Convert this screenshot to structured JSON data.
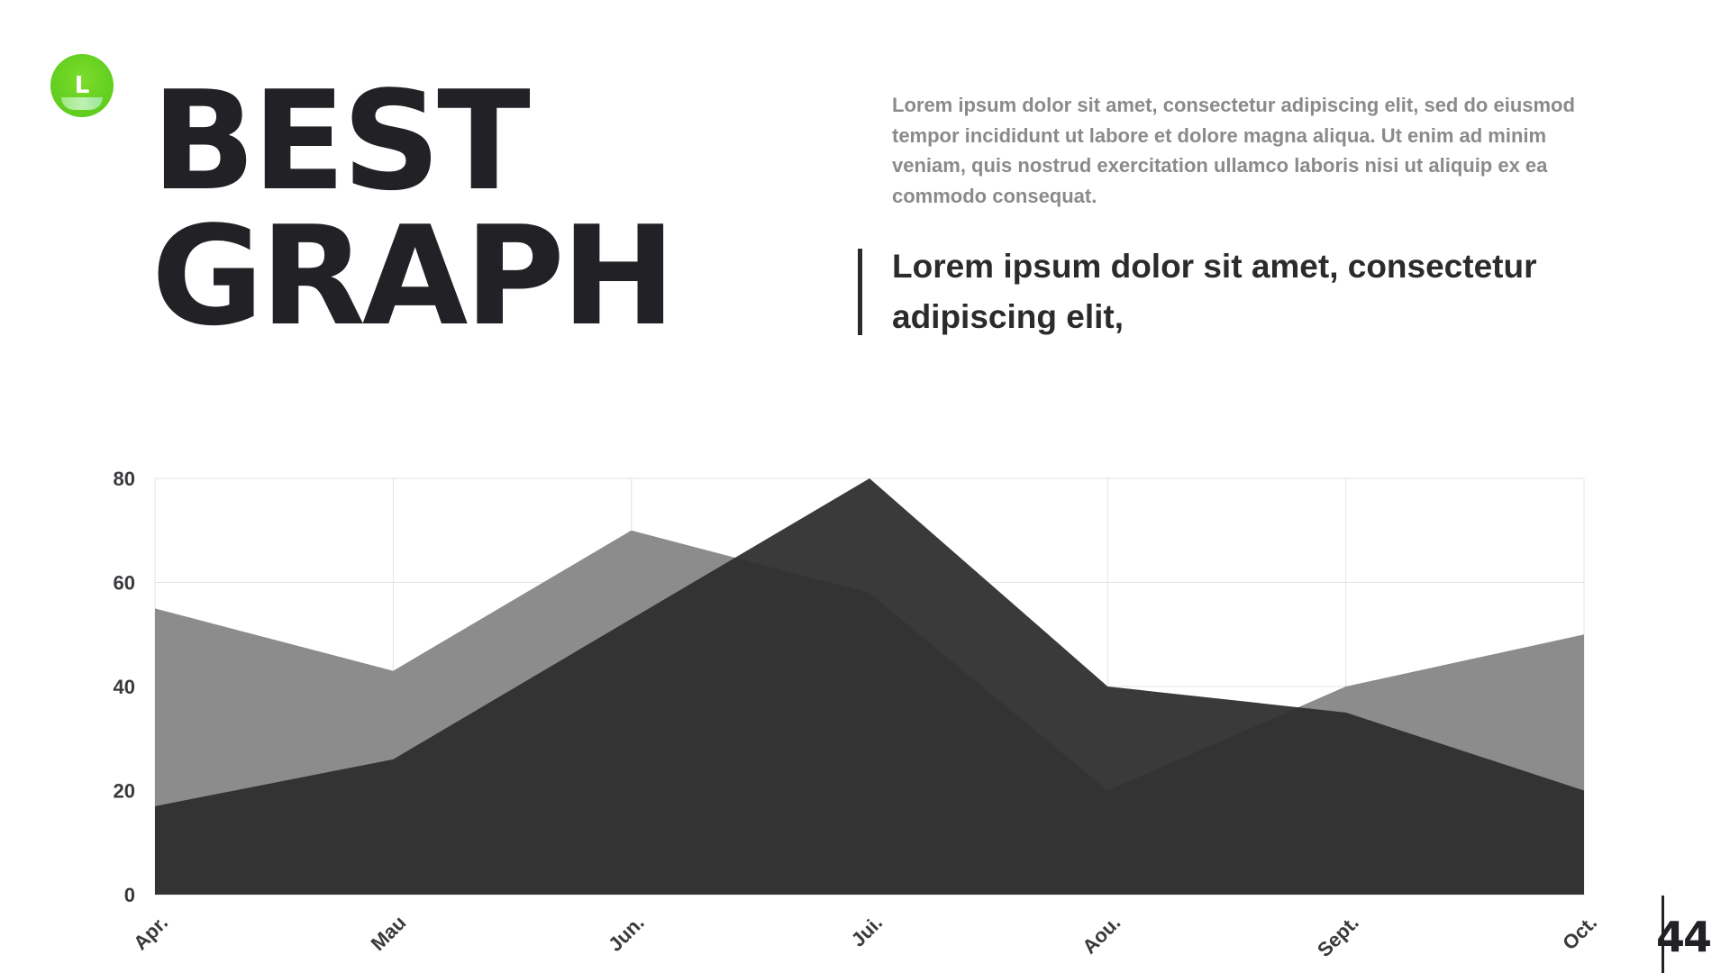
{
  "logo": {
    "letter": "L",
    "icon": "logo-circle-icon",
    "color": "#5cc81b"
  },
  "title": {
    "line1": "BEST",
    "line2": "GRAPH"
  },
  "paragraph": "Lorem ipsum dolor sit amet, consectetur adipiscing elit, sed do eiusmod tempor incididunt ut labore et dolore magna aliqua. Ut enim ad minim veniam, quis nostrud exercitation ullamco laboris nisi ut aliquip ex ea commodo consequat.",
  "quote": "Lorem ipsum dolor sit amet, consectetur adipiscing elit,",
  "page_number": "44",
  "chart_data": {
    "type": "area",
    "categories": [
      "Apr.",
      "Mau",
      "Jun.",
      "Jui.",
      "Aou.",
      "Sept.",
      "Oct."
    ],
    "series": [
      {
        "values": [
          55,
          43,
          70,
          58,
          20,
          40,
          50
        ],
        "color": "#8c8c8c"
      },
      {
        "values": [
          17,
          26,
          53,
          80,
          40,
          35,
          20
        ],
        "color": "#2e2e2e"
      }
    ],
    "ylim": [
      0,
      80
    ],
    "yticks": [
      0,
      20,
      40,
      60,
      80
    ],
    "grid": true
  }
}
